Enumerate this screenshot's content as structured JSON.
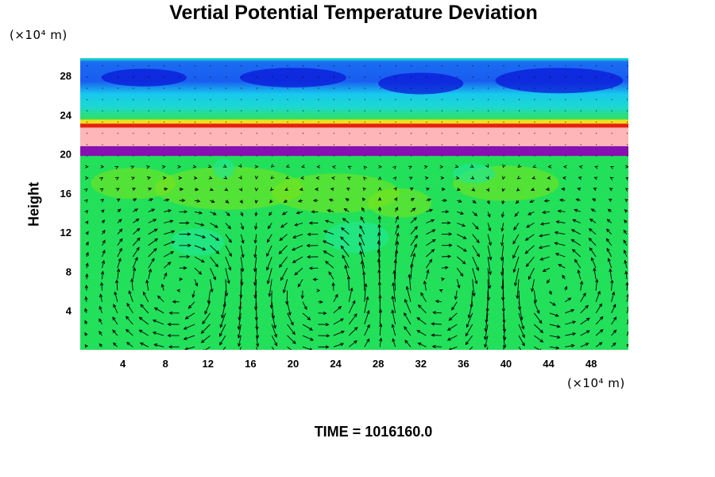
{
  "chart_data": {
    "type": "heatmap",
    "title": "Vertial Potential Temperature Deviation",
    "ylabel": "Height",
    "y_unit": "(×10⁴ m)",
    "x_unit": "(×10⁴ m)",
    "footer": "TIME = 1016160.0",
    "xlim": [
      0,
      51.5
    ],
    "ylim": [
      0,
      29.8
    ],
    "x_ticks": [
      4,
      8,
      12,
      16,
      20,
      24,
      28,
      32,
      36,
      40,
      44,
      48
    ],
    "y_ticks": [
      4,
      8,
      12,
      16,
      20,
      24,
      28
    ],
    "x_tick_labels": [
      "4",
      "8",
      "12",
      "16",
      "20",
      "24",
      "28",
      "32",
      "36",
      "40",
      "44",
      "48"
    ],
    "y_tick_labels": [
      "4",
      "8",
      "12",
      "16",
      "20",
      "24",
      "28"
    ],
    "colors": {
      "background_field": "#22e05a",
      "upper_light": "#1fe89a",
      "cyan": "#13d8ee",
      "blue": "#1a5cf0",
      "deep_blue": "#0b18d8",
      "red": "#e8200f",
      "pink": "#ffb6b8",
      "purple": "#8810b0",
      "yellow_green": "#7be41a",
      "vector": "#000000"
    },
    "layers": [
      {
        "name": "purple",
        "y0": 19.8,
        "y1": 20.8
      },
      {
        "name": "pink",
        "y0": 20.8,
        "y1": 22.7
      },
      {
        "name": "red",
        "y0": 22.7,
        "y1": 23.1
      },
      {
        "name": "blue",
        "y0": 25.8,
        "y1": 29.8
      }
    ],
    "circulation_cells": [
      {
        "center_x": 9.5,
        "center_y": 6.5,
        "rotation": "clockwise"
      },
      {
        "center_x": 22.5,
        "center_y": 6.0,
        "rotation": "counterclockwise"
      },
      {
        "center_x": 34.5,
        "center_y": 6.5,
        "rotation": "clockwise"
      },
      {
        "center_x": 44.0,
        "center_y": 6.5,
        "rotation": "counterclockwise"
      }
    ],
    "grid": false
  }
}
